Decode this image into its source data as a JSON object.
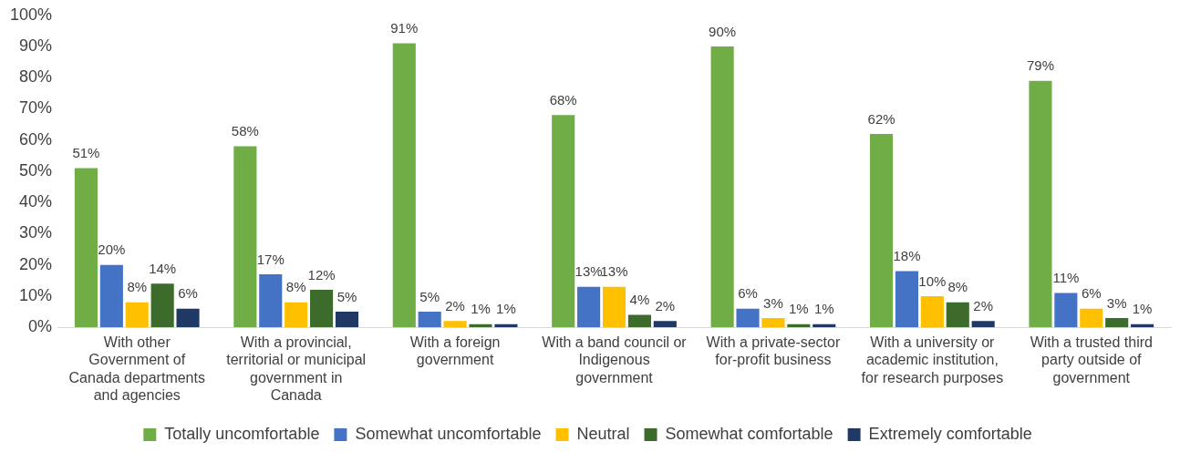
{
  "chart_data": {
    "type": "bar",
    "categories": [
      "With other Government of Canada departments and agencies",
      "With a provincial, territorial or municipal government in Canada",
      "With a foreign government",
      "With a band council or Indigenous government",
      "With a private-sector for-profit business",
      "With a university or academic institution, for research purposes",
      "With a trusted third party outside of government"
    ],
    "series": [
      {
        "name": "Totally uncomfortable",
        "color": "#70ad47",
        "values": [
          51,
          58,
          91,
          68,
          90,
          62,
          79
        ],
        "value_labels": [
          "51%",
          "58%",
          "91%",
          "68%",
          "90%",
          "62%",
          "79%"
        ]
      },
      {
        "name": "Somewhat uncomfortable",
        "color": "#4472c4",
        "values": [
          20,
          17,
          5,
          13,
          6,
          18,
          11
        ],
        "value_labels": [
          "20%",
          "17%",
          "5%",
          "13%",
          "6%",
          "18%",
          "11%"
        ]
      },
      {
        "name": "Neutral",
        "color": "#ffc000",
        "values": [
          8,
          8,
          2,
          13,
          3,
          10,
          6
        ],
        "value_labels": [
          "8%",
          "8%",
          "2%",
          "13%",
          "3%",
          "10%",
          "6%"
        ]
      },
      {
        "name": "Somewhat comfortable",
        "color": "#3d6b2c",
        "values": [
          14,
          12,
          1,
          4,
          1,
          8,
          3
        ],
        "value_labels": [
          "14%",
          "12%",
          "1%",
          "4%",
          "1%",
          "8%",
          "3%"
        ]
      },
      {
        "name": "Extremely comfortable",
        "color": "#203864",
        "values": [
          6,
          5,
          1,
          2,
          1,
          2,
          1
        ],
        "value_labels": [
          "6%",
          "5%",
          "1%",
          "2%",
          "1%",
          "2%",
          "1%"
        ]
      }
    ],
    "ylim": [
      0,
      100
    ],
    "yticks": [
      {
        "value": 0,
        "label": "0%"
      },
      {
        "value": 10,
        "label": "10%"
      },
      {
        "value": 20,
        "label": "20%"
      },
      {
        "value": 30,
        "label": "30%"
      },
      {
        "value": 40,
        "label": "40%"
      },
      {
        "value": 50,
        "label": "50%"
      },
      {
        "value": 60,
        "label": "60%"
      },
      {
        "value": 70,
        "label": "70%"
      },
      {
        "value": 80,
        "label": "80%"
      },
      {
        "value": 90,
        "label": "90%"
      },
      {
        "value": 100,
        "label": "100%"
      }
    ],
    "grid": false,
    "legend": "bottom"
  }
}
